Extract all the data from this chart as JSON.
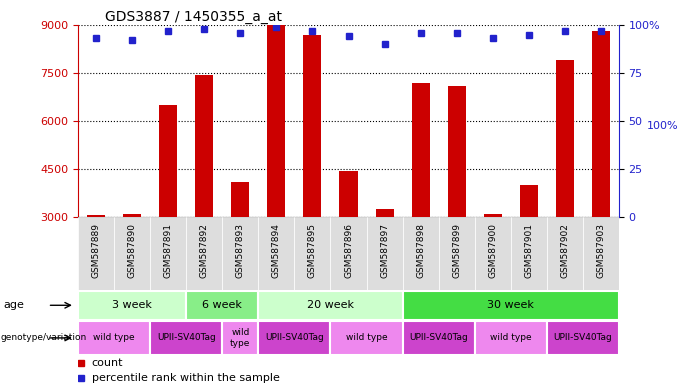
{
  "title": "GDS3887 / 1450355_a_at",
  "samples": [
    "GSM587889",
    "GSM587890",
    "GSM587891",
    "GSM587892",
    "GSM587893",
    "GSM587894",
    "GSM587895",
    "GSM587896",
    "GSM587897",
    "GSM587898",
    "GSM587899",
    "GSM587900",
    "GSM587901",
    "GSM587902",
    "GSM587903"
  ],
  "counts": [
    3050,
    3090,
    6500,
    7450,
    4100,
    9000,
    8700,
    4450,
    3250,
    7200,
    7100,
    3090,
    4000,
    7900,
    8800
  ],
  "percentiles": [
    93,
    92,
    97,
    98,
    96,
    99,
    97,
    94,
    90,
    96,
    96,
    93,
    95,
    97,
    97
  ],
  "ylim_left": [
    3000,
    9000
  ],
  "ylim_right": [
    0,
    100
  ],
  "yticks_left": [
    3000,
    4500,
    6000,
    7500,
    9000
  ],
  "yticks_right": [
    0,
    25,
    50,
    75,
    100
  ],
  "bar_color": "#cc0000",
  "dot_color": "#2222cc",
  "age_groups": [
    {
      "label": "3 week",
      "start": 0,
      "end": 3,
      "color": "#ccffcc"
    },
    {
      "label": "6 week",
      "start": 3,
      "end": 5,
      "color": "#88ee88"
    },
    {
      "label": "20 week",
      "start": 5,
      "end": 9,
      "color": "#ccffcc"
    },
    {
      "label": "30 week",
      "start": 9,
      "end": 15,
      "color": "#44dd44"
    }
  ],
  "geno_groups": [
    {
      "label": "wild type",
      "start": 0,
      "end": 2,
      "color": "#ee88ee"
    },
    {
      "label": "UPII-SV40Tag",
      "start": 2,
      "end": 4,
      "color": "#cc44cc"
    },
    {
      "label": "wild\ntype",
      "start": 4,
      "end": 5,
      "color": "#ee88ee"
    },
    {
      "label": "UPII-SV40Tag",
      "start": 5,
      "end": 7,
      "color": "#cc44cc"
    },
    {
      "label": "wild type",
      "start": 7,
      "end": 9,
      "color": "#ee88ee"
    },
    {
      "label": "UPII-SV40Tag",
      "start": 9,
      "end": 11,
      "color": "#cc44cc"
    },
    {
      "label": "wild type",
      "start": 11,
      "end": 13,
      "color": "#ee88ee"
    },
    {
      "label": "UPII-SV40Tag",
      "start": 13,
      "end": 15,
      "color": "#cc44cc"
    }
  ],
  "left_color": "#cc0000",
  "right_color": "#2222cc",
  "background_color": "#ffffff",
  "sample_bg_color": "#dddddd"
}
